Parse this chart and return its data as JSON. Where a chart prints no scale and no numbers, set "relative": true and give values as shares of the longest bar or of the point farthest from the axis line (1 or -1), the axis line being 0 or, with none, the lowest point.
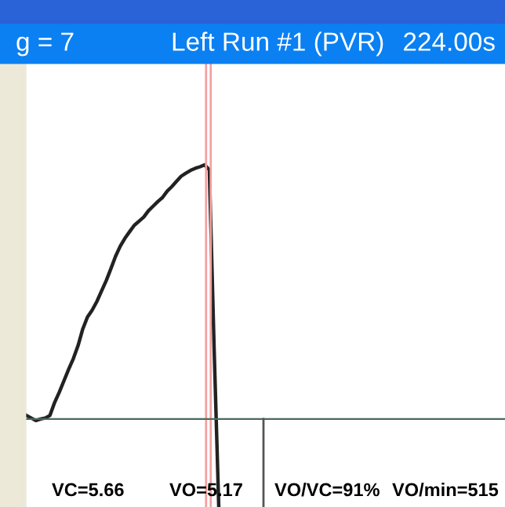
{
  "chart_data": {
    "type": "line",
    "relative": true,
    "title": "Left Run #1 (PVR)",
    "annotations": [
      "g = 7",
      "224.00s",
      "VC=5.66",
      "VO=5.17",
      "VO/VC=91%",
      "VO/min=515"
    ],
    "categories": [
      null,
      null,
      null,
      null,
      null,
      null,
      null,
      null,
      null,
      null,
      null,
      null,
      null,
      null,
      null,
      null,
      null,
      null,
      null,
      null,
      null,
      null,
      null,
      null,
      null,
      null,
      null,
      null,
      null,
      null,
      null,
      null,
      null,
      null,
      null,
      null,
      null,
      null,
      null,
      null,
      null,
      null
    ],
    "series": [
      {
        "color": "#222222",
        "values": [
          0.014,
          0.004,
          -0.006,
          0,
          0.004,
          0.014,
          0.065,
          0.106,
          0.151,
          0.196,
          0.238,
          0.289,
          0.354,
          0.401,
          0.428,
          0.462,
          0.503,
          0.544,
          0.591,
          0.64,
          0.68,
          0.711,
          0.737,
          0.762,
          0.778,
          0.794,
          0.819,
          0.837,
          0.855,
          0.871,
          0.896,
          0.914,
          0.935,
          0.955,
          0.967,
          0.978,
          0.986,
          0.992,
          1.0,
          0.98,
          0.29,
          -0.34
        ]
      }
    ],
    "legend": false,
    "marker": "none",
    "line_style": "solid"
  }
}
